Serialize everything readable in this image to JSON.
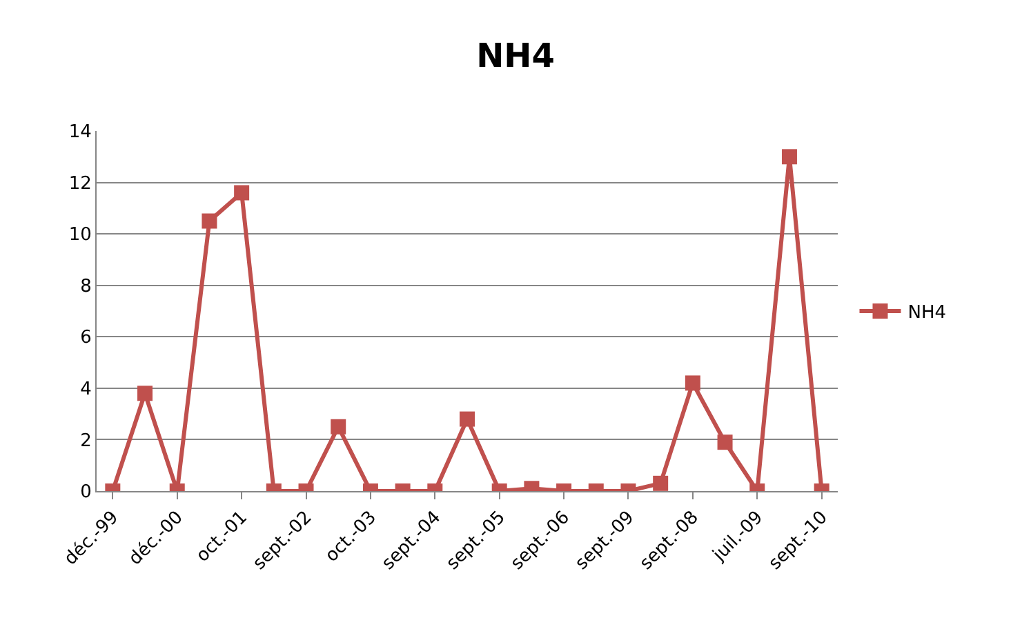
{
  "chart_data": {
    "type": "line",
    "title": "NH4",
    "categories": [
      "déc.-99",
      null,
      "déc.-00",
      null,
      "oct.-01",
      null,
      "sept.-02",
      null,
      "oct.-03",
      null,
      "sept.-04",
      null,
      "sept.-05",
      null,
      "sept.-06",
      null,
      "sept.-09",
      null,
      "sept.-08",
      null,
      "juil.-09",
      null,
      "sept.-10"
    ],
    "series": [
      {
        "name": "NH4",
        "color": "#c0504d",
        "values": [
          0,
          3.8,
          0,
          10.5,
          11.6,
          0,
          0,
          2.5,
          0,
          0,
          0,
          2.8,
          0,
          0.1,
          0,
          0,
          0,
          0.3,
          4.2,
          1.9,
          0,
          13,
          0
        ]
      }
    ],
    "ylim": [
      0,
      14
    ],
    "yticks": [
      0,
      2,
      4,
      6,
      8,
      10,
      12,
      14
    ],
    "grid": "y",
    "legend": "right",
    "marker": "square",
    "line_style": "solid"
  }
}
